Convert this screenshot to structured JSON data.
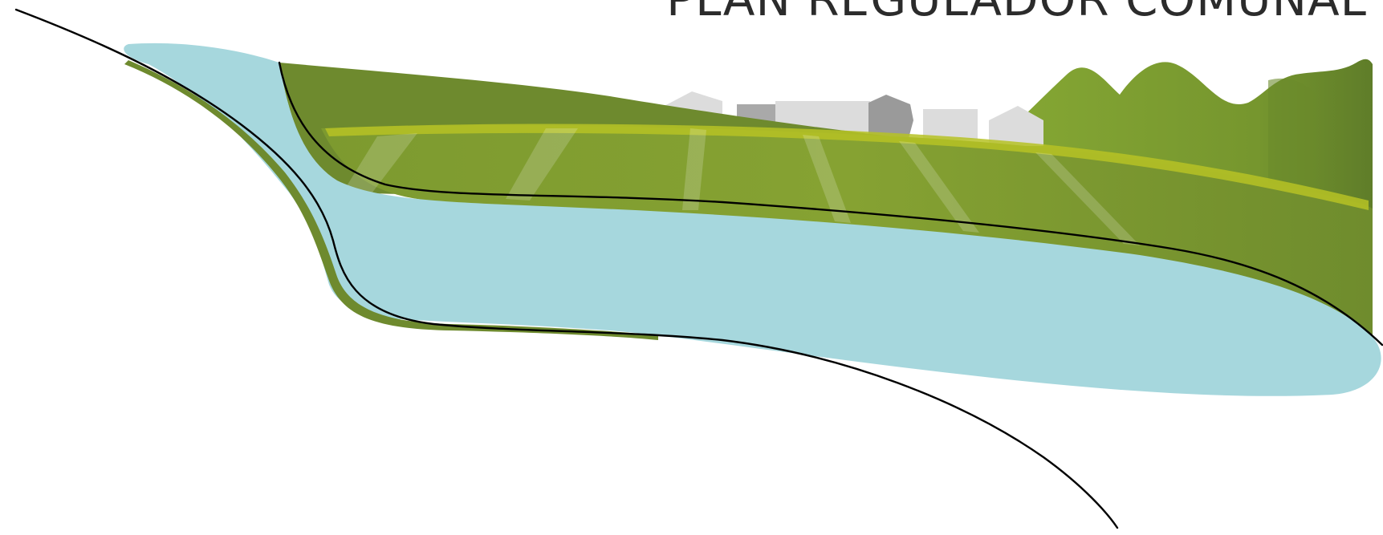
{
  "title": "PLAN REGULADOR COMUNAL",
  "colors": {
    "water": "#a6d7dd",
    "field_dark": "#6e8a2e",
    "field_mid": "#7f9b31",
    "field_light": "#b6c225",
    "hills": "#7a9a2e",
    "buildings_light": "#dcdcdc",
    "buildings_dark": "#9a9a9a",
    "outline": "#000000"
  },
  "icons": [
    "buildings-illustration",
    "hills-illustration",
    "water-illustration"
  ]
}
